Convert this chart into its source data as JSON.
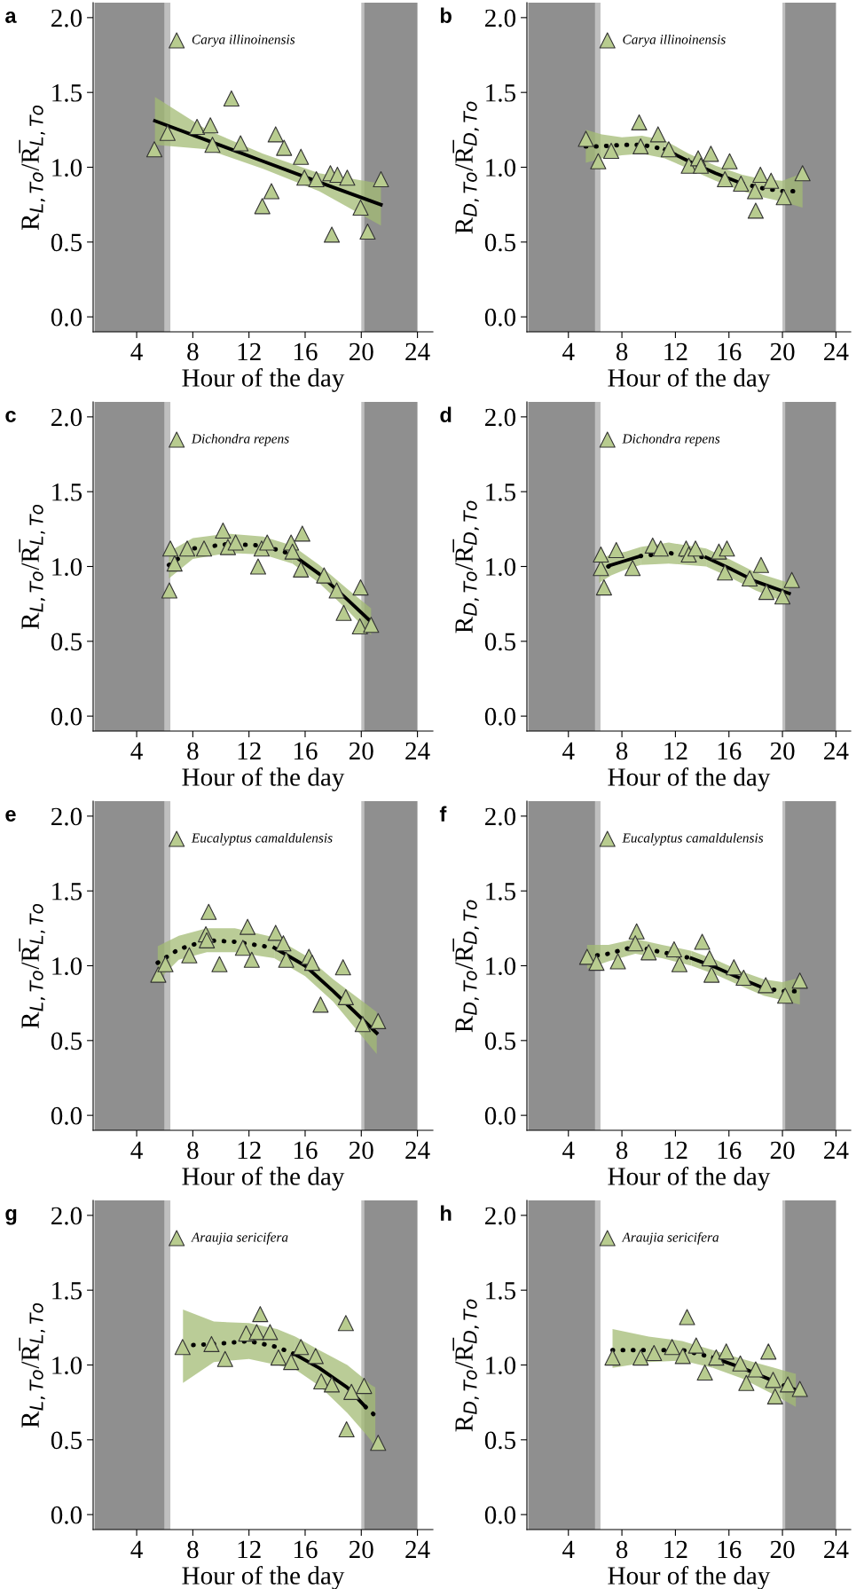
{
  "chart_data": [
    {
      "type": "scatter",
      "title": "a",
      "xlabel": "Hour of the day",
      "ylabel": "R$_{L,To}$/R̅$_{L,To}$",
      "xlim": [
        0.9,
        25.1
      ],
      "xticks": [
        4,
        8,
        12,
        16,
        20,
        24
      ],
      "ylim": [
        -0.1,
        2.1
      ],
      "yticks": [
        {
          "value": 0,
          "label": "0.0"
        },
        {
          "value": 0.5,
          "label": "0.5"
        },
        {
          "value": 1,
          "label": "1.0"
        },
        {
          "value": 1.5,
          "label": "1.5"
        },
        {
          "value": 2,
          "label": "2.0"
        }
      ],
      "legend": "top left",
      "bands": [
        {
          "axis": "x",
          "from": 1,
          "to": 6,
          "color": "#8f8f8f"
        },
        {
          "axis": "x",
          "from": 6,
          "to": 6.4,
          "color": "#bfbfbf"
        },
        {
          "axis": "x",
          "from": 20,
          "to": 20.2,
          "color": "#bfbfbf"
        },
        {
          "axis": "x",
          "from": 20.2,
          "to": 24,
          "color": "#8f8f8f"
        }
      ],
      "series": [
        {
          "type": "scatter",
          "marker": "triangle",
          "name": "Carya illinoinensis",
          "color": "#b8cc8f",
          "x": [
            5.26,
            6.2,
            8.3,
            9.25,
            9.4,
            10.75,
            11.4,
            12.95,
            13.6,
            13.9,
            14.5,
            15.7,
            15.95,
            16.8,
            17.8,
            17.9,
            18.3,
            19.0,
            19.95,
            20.45,
            21.4
          ],
          "values": [
            1.12,
            1.23,
            1.27,
            1.28,
            1.15,
            1.46,
            1.16,
            0.74,
            0.84,
            1.22,
            1.13,
            1.07,
            0.93,
            0.92,
            0.96,
            0.55,
            0.95,
            0.93,
            0.73,
            0.57,
            0.92
          ]
        },
        {
          "type": "line",
          "color": "#000000",
          "line_style": "solid",
          "x": [
            5.3,
            9,
            13,
            17,
            21.4
          ],
          "values": [
            1.31,
            1.18,
            1.04,
            0.9,
            0.75
          ],
          "lower": [
            1.15,
            1.12,
            0.99,
            0.84,
            0.61
          ],
          "upper": [
            1.47,
            1.25,
            1.09,
            0.96,
            0.89
          ]
        }
      ]
    },
    {
      "type": "scatter",
      "title": "b",
      "xlabel": "Hour of the day",
      "ylabel": "R$_{D,To}$/R̅$_{D,To}$",
      "xlim": [
        0.9,
        25.1
      ],
      "xticks": [
        4,
        8,
        12,
        16,
        20,
        24
      ],
      "ylim": [
        -0.1,
        2.1
      ],
      "yticks": [
        {
          "value": 0,
          "label": "0.0"
        },
        {
          "value": 0.5,
          "label": "0.5"
        },
        {
          "value": 1,
          "label": "1.0"
        },
        {
          "value": 1.5,
          "label": "1.5"
        },
        {
          "value": 2,
          "label": "2.0"
        }
      ],
      "legend": "top left",
      "bands": [
        {
          "axis": "x",
          "from": 1,
          "to": 6,
          "color": "#8f8f8f"
        },
        {
          "axis": "x",
          "from": 6,
          "to": 6.4,
          "color": "#bfbfbf"
        },
        {
          "axis": "x",
          "from": 20,
          "to": 20.2,
          "color": "#bfbfbf"
        },
        {
          "axis": "x",
          "from": 20.2,
          "to": 24,
          "color": "#8f8f8f"
        }
      ],
      "series": [
        {
          "type": "scatter",
          "marker": "triangle",
          "name": "Carya illinoinensis",
          "color": "#b8cc8f",
          "x": [
            5.31,
            6.23,
            7.2,
            9.29,
            9.4,
            10.7,
            11.5,
            13.0,
            13.7,
            13.9,
            14.65,
            15.7,
            16.05,
            16.9,
            17.95,
            18.0,
            18.35,
            19.15,
            20.1,
            21.5
          ],
          "values": [
            1.19,
            1.04,
            1.11,
            1.3,
            1.14,
            1.22,
            1.12,
            1.01,
            1.06,
            1.01,
            1.09,
            0.92,
            1.04,
            0.89,
            0.84,
            0.71,
            0.95,
            0.91,
            0.8,
            0.96
          ]
        },
        {
          "type": "line",
          "color": "#000000",
          "line_style": "dotted",
          "x": [
            5.3,
            6.5,
            8,
            9.5,
            11.2
          ],
          "values": [
            1.14,
            1.14,
            1.15,
            1.15,
            1.12
          ],
          "lower": [
            1.03,
            1.06,
            1.08,
            1.09,
            1.06
          ],
          "upper": [
            1.25,
            1.22,
            1.2,
            1.21,
            1.18
          ]
        },
        {
          "type": "line",
          "color": "#000000",
          "line_style": "solid",
          "x": [
            11.2,
            13,
            15,
            17
          ],
          "values": [
            1.12,
            1.04,
            0.96,
            0.89
          ],
          "lower": [
            1.06,
            0.99,
            0.91,
            0.84
          ],
          "upper": [
            1.18,
            1.09,
            1.01,
            0.95
          ]
        },
        {
          "type": "line",
          "color": "#000000",
          "line_style": "dotted",
          "x": [
            17,
            18.5,
            20,
            21.5
          ],
          "values": [
            0.89,
            0.86,
            0.84,
            0.84
          ],
          "lower": [
            0.84,
            0.8,
            0.77,
            0.73
          ],
          "upper": [
            0.95,
            0.92,
            0.91,
            0.96
          ]
        }
      ]
    },
    {
      "type": "scatter",
      "title": "c",
      "xlabel": "Hour of the day",
      "ylabel": "R$_{L,To}$/R̅$_{L,To}$",
      "xlim": [
        0.9,
        25.1
      ],
      "xticks": [
        4,
        8,
        12,
        16,
        20,
        24
      ],
      "ylim": [
        -0.1,
        2.1
      ],
      "yticks": [
        {
          "value": 0,
          "label": "0.0"
        },
        {
          "value": 0.5,
          "label": "0.5"
        },
        {
          "value": 1,
          "label": "1.0"
        },
        {
          "value": 1.5,
          "label": "1.5"
        },
        {
          "value": 2,
          "label": "2.0"
        }
      ],
      "legend": "top left",
      "bands": [
        {
          "axis": "x",
          "from": 1,
          "to": 6,
          "color": "#8f8f8f"
        },
        {
          "axis": "x",
          "from": 6,
          "to": 6.4,
          "color": "#bfbfbf"
        },
        {
          "axis": "x",
          "from": 20,
          "to": 20.2,
          "color": "#bfbfbf"
        },
        {
          "axis": "x",
          "from": 20.2,
          "to": 24,
          "color": "#8f8f8f"
        }
      ],
      "series": [
        {
          "type": "scatter",
          "marker": "triangle",
          "name": "Dichondra repens",
          "color": "#b8cc8f",
          "x": [
            6.4,
            6.33,
            6.7,
            7.6,
            8.8,
            10.15,
            10.5,
            11.05,
            12.65,
            12.9,
            13.3,
            15.0,
            15.1,
            15.7,
            15.8,
            17.35,
            18.25,
            18.75,
            19.95,
            19.9,
            20.7
          ],
          "values": [
            1.12,
            0.84,
            1.02,
            1.12,
            1.12,
            1.24,
            1.13,
            1.16,
            1.0,
            1.12,
            1.16,
            1.16,
            1.1,
            0.98,
            1.22,
            0.94,
            0.84,
            0.69,
            0.86,
            0.6,
            0.61
          ]
        },
        {
          "type": "line",
          "color": "#000000",
          "line_style": "dotted",
          "x": [
            6.3,
            8,
            10.5,
            13,
            15.1
          ],
          "values": [
            1.01,
            1.12,
            1.15,
            1.14,
            1.08
          ],
          "lower": [
            0.92,
            1.05,
            1.09,
            1.08,
            1.02
          ],
          "upper": [
            1.1,
            1.19,
            1.22,
            1.2,
            1.14
          ]
        },
        {
          "type": "line",
          "color": "#000000",
          "line_style": "solid",
          "x": [
            15.1,
            17,
            19,
            20.7
          ],
          "values": [
            1.08,
            0.95,
            0.78,
            0.63
          ],
          "lower": [
            1.02,
            0.89,
            0.71,
            0.54
          ],
          "upper": [
            1.14,
            1.01,
            0.85,
            0.72
          ]
        }
      ]
    },
    {
      "type": "scatter",
      "title": "d",
      "xlabel": "Hour of the day",
      "ylabel": "R$_{D,To}$/R̅$_{D,To}$",
      "xlim": [
        0.9,
        25.1
      ],
      "xticks": [
        4,
        8,
        12,
        16,
        20,
        24
      ],
      "ylim": [
        -0.1,
        2.1
      ],
      "yticks": [
        {
          "value": 0,
          "label": "0.0"
        },
        {
          "value": 0.5,
          "label": "0.5"
        },
        {
          "value": 1,
          "label": "1.0"
        },
        {
          "value": 1.5,
          "label": "1.5"
        },
        {
          "value": 2,
          "label": "2.0"
        }
      ],
      "legend": "top left",
      "bands": [
        {
          "axis": "x",
          "from": 1,
          "to": 6,
          "color": "#8f8f8f"
        },
        {
          "axis": "x",
          "from": 6,
          "to": 6.4,
          "color": "#bfbfbf"
        },
        {
          "axis": "x",
          "from": 20,
          "to": 20.2,
          "color": "#bfbfbf"
        },
        {
          "axis": "x",
          "from": 20.2,
          "to": 24,
          "color": "#8f8f8f"
        }
      ],
      "series": [
        {
          "type": "scatter",
          "marker": "triangle",
          "name": "Dichondra repens",
          "color": "#b8cc8f",
          "x": [
            6.43,
            6.43,
            6.66,
            7.58,
            8.8,
            10.3,
            10.9,
            12.8,
            13.0,
            13.5,
            15.25,
            15.7,
            15.85,
            17.55,
            18.4,
            18.8,
            20.0,
            20.7
          ],
          "values": [
            0.99,
            1.08,
            0.86,
            1.11,
            0.99,
            1.14,
            1.12,
            1.12,
            1.08,
            1.12,
            1.1,
            0.96,
            1.12,
            0.92,
            1.01,
            0.83,
            0.8,
            0.91
          ]
        },
        {
          "type": "line",
          "color": "#000000",
          "line_style": "dotted",
          "x": [
            6.3,
            7.2
          ],
          "values": [
            0.97,
            1.01
          ],
          "lower": [
            0.89,
            0.94
          ],
          "upper": [
            1.05,
            1.08
          ]
        },
        {
          "type": "line",
          "color": "#000000",
          "line_style": "solid",
          "x": [
            7.2,
            8.3,
            9.4
          ],
          "values": [
            1.01,
            1.04,
            1.07
          ],
          "lower": [
            0.94,
            0.98,
            1.01
          ],
          "upper": [
            1.08,
            1.1,
            1.13
          ]
        },
        {
          "type": "line",
          "color": "#000000",
          "line_style": "dotted",
          "x": [
            9.4,
            11.5,
            14.3
          ],
          "values": [
            1.07,
            1.09,
            1.06
          ],
          "lower": [
            1.01,
            1.02,
            1.0
          ],
          "upper": [
            1.13,
            1.16,
            1.12
          ]
        },
        {
          "type": "line",
          "color": "#000000",
          "line_style": "solid",
          "x": [
            14.3,
            16,
            18,
            20.5
          ],
          "values": [
            1.06,
            0.99,
            0.9,
            0.82
          ],
          "lower": [
            1.0,
            0.93,
            0.84,
            0.75
          ],
          "upper": [
            1.12,
            1.05,
            0.96,
            0.89
          ]
        }
      ]
    },
    {
      "type": "scatter",
      "title": "e",
      "xlabel": "Hour of the day",
      "ylabel": "R$_{L,To}$/R̅$_{L,To}$",
      "xlim": [
        0.9,
        25.1
      ],
      "xticks": [
        4,
        8,
        12,
        16,
        20,
        24
      ],
      "ylim": [
        -0.1,
        2.1
      ],
      "yticks": [
        {
          "value": 0,
          "label": "0.0"
        },
        {
          "value": 0.5,
          "label": "0.5"
        },
        {
          "value": 1,
          "label": "1.0"
        },
        {
          "value": 1.5,
          "label": "1.5"
        },
        {
          "value": 2,
          "label": "2.0"
        }
      ],
      "legend": "top left",
      "bands": [
        {
          "axis": "x",
          "from": 1,
          "to": 6,
          "color": "#8f8f8f"
        },
        {
          "axis": "x",
          "from": 6,
          "to": 6.4,
          "color": "#bfbfbf"
        },
        {
          "axis": "x",
          "from": 20,
          "to": 20.2,
          "color": "#bfbfbf"
        },
        {
          "axis": "x",
          "from": 20.2,
          "to": 24,
          "color": "#8f8f8f"
        }
      ],
      "series": [
        {
          "type": "scatter",
          "marker": "triangle",
          "name": "Eucalyptus camaldulensis",
          "color": "#b8cc8f",
          "x": [
            5.54,
            6.05,
            7.75,
            8.93,
            9.13,
            9.0,
            9.9,
            11.57,
            11.9,
            12.2,
            13.9,
            14.45,
            14.65,
            16.27,
            16.5,
            17.1,
            18.7,
            18.9,
            20.1,
            21.2
          ],
          "values": [
            0.94,
            1.01,
            1.07,
            1.21,
            1.36,
            1.17,
            1.01,
            1.12,
            1.26,
            1.04,
            1.22,
            1.15,
            1.04,
            1.06,
            1.02,
            0.74,
            0.99,
            0.79,
            0.61,
            0.63
          ]
        },
        {
          "type": "line",
          "color": "#000000",
          "line_style": "dotted",
          "x": [
            5.5,
            7,
            9,
            11,
            13.8
          ],
          "values": [
            1.02,
            1.11,
            1.17,
            1.16,
            1.12
          ],
          "lower": [
            0.9,
            1.04,
            1.09,
            1.09,
            1.05
          ],
          "upper": [
            1.13,
            1.2,
            1.25,
            1.25,
            1.19
          ]
        },
        {
          "type": "line",
          "color": "#000000",
          "line_style": "solid",
          "x": [
            13.8,
            16,
            18,
            21.1
          ],
          "values": [
            1.12,
            1.0,
            0.83,
            0.55
          ],
          "lower": [
            1.05,
            0.93,
            0.76,
            0.41
          ],
          "upper": [
            1.19,
            1.07,
            0.91,
            0.69
          ]
        }
      ]
    },
    {
      "type": "scatter",
      "title": "f",
      "xlabel": "Hour of the day",
      "ylabel": "R$_{D,To}$/R̅$_{D,To}$",
      "xlim": [
        0.9,
        25.1
      ],
      "xticks": [
        4,
        8,
        12,
        16,
        20,
        24
      ],
      "ylim": [
        -0.1,
        2.1
      ],
      "yticks": [
        {
          "value": 0,
          "label": "0.0"
        },
        {
          "value": 0.5,
          "label": "0.5"
        },
        {
          "value": 1,
          "label": "1.0"
        },
        {
          "value": 1.5,
          "label": "1.5"
        },
        {
          "value": 2,
          "label": "2.0"
        }
      ],
      "legend": "top left",
      "bands": [
        {
          "axis": "x",
          "from": 1,
          "to": 6,
          "color": "#8f8f8f"
        },
        {
          "axis": "x",
          "from": 6,
          "to": 6.4,
          "color": "#bfbfbf"
        },
        {
          "axis": "x",
          "from": 20,
          "to": 20.2,
          "color": "#bfbfbf"
        },
        {
          "axis": "x",
          "from": 20.2,
          "to": 24,
          "color": "#8f8f8f"
        }
      ],
      "series": [
        {
          "type": "scatter",
          "marker": "triangle",
          "name": "Eucalyptus camaldulensis",
          "color": "#b8cc8f",
          "x": [
            5.4,
            6.1,
            7.7,
            9.1,
            9.0,
            10.0,
            11.9,
            12.3,
            14.0,
            14.55,
            14.7,
            16.37,
            17.1,
            18.75,
            20.2,
            21.3
          ],
          "values": [
            1.06,
            1.02,
            1.03,
            1.23,
            1.15,
            1.09,
            1.11,
            1.01,
            1.16,
            1.05,
            0.94,
            0.99,
            0.92,
            0.87,
            0.8,
            0.9
          ]
        },
        {
          "type": "line",
          "color": "#000000",
          "line_style": "dotted",
          "x": [
            5.4,
            7,
            9,
            11,
            13.2
          ],
          "values": [
            1.06,
            1.08,
            1.13,
            1.09,
            1.05
          ],
          "lower": [
            0.98,
            1.03,
            1.08,
            1.05,
            1.0
          ],
          "upper": [
            1.14,
            1.14,
            1.18,
            1.14,
            1.1
          ]
        },
        {
          "type": "line",
          "color": "#000000",
          "line_style": "solid",
          "x": [
            13.2,
            15,
            17,
            18.6
          ],
          "values": [
            1.05,
            0.99,
            0.91,
            0.85
          ],
          "lower": [
            1.0,
            0.94,
            0.86,
            0.8
          ],
          "upper": [
            1.1,
            1.04,
            0.96,
            0.91
          ]
        },
        {
          "type": "line",
          "color": "#000000",
          "line_style": "dotted",
          "x": [
            18.6,
            20,
            21.3
          ],
          "values": [
            0.85,
            0.83,
            0.83
          ],
          "lower": [
            0.8,
            0.77,
            0.74
          ],
          "upper": [
            0.91,
            0.89,
            0.92
          ]
        }
      ]
    },
    {
      "type": "scatter",
      "title": "g",
      "xlabel": "Hour of the day",
      "ylabel": "R$_{L,To}$/R̅$_{L,To}$",
      "xlim": [
        0.9,
        25.1
      ],
      "xticks": [
        4,
        8,
        12,
        16,
        20,
        24
      ],
      "ylim": [
        -0.1,
        2.1
      ],
      "yticks": [
        {
          "value": 0,
          "label": "0.0"
        },
        {
          "value": 0.5,
          "label": "0.5"
        },
        {
          "value": 1,
          "label": "1.0"
        },
        {
          "value": 1.5,
          "label": "1.5"
        },
        {
          "value": 2,
          "label": "2.0"
        }
      ],
      "legend": "top left",
      "bands": [
        {
          "axis": "x",
          "from": 1,
          "to": 6,
          "color": "#8f8f8f"
        },
        {
          "axis": "x",
          "from": 6,
          "to": 6.4,
          "color": "#bfbfbf"
        },
        {
          "axis": "x",
          "from": 20,
          "to": 20.2,
          "color": "#bfbfbf"
        },
        {
          "axis": "x",
          "from": 20.2,
          "to": 24,
          "color": "#8f8f8f"
        }
      ],
      "series": [
        {
          "type": "scatter",
          "marker": "triangle",
          "name": "Araujia sericifera",
          "color": "#b8cc8f",
          "x": [
            7.27,
            9.33,
            10.3,
            11.8,
            12.55,
            12.8,
            13.5,
            14.1,
            15.0,
            15.7,
            16.75,
            17.15,
            17.9,
            18.9,
            18.95,
            19.3,
            20.2,
            21.2
          ],
          "values": [
            1.12,
            1.14,
            1.04,
            1.21,
            1.22,
            1.34,
            1.22,
            1.05,
            1.02,
            1.12,
            1.06,
            0.89,
            0.87,
            1.28,
            0.57,
            0.82,
            0.86,
            0.48
          ]
        },
        {
          "type": "line",
          "color": "#000000",
          "line_style": "dotted",
          "x": [
            7.3,
            9.5,
            12,
            14,
            15.3
          ],
          "values": [
            1.13,
            1.14,
            1.16,
            1.12,
            1.07
          ],
          "lower": [
            0.88,
            1.02,
            1.04,
            1.0,
            0.97
          ],
          "upper": [
            1.37,
            1.29,
            1.28,
            1.24,
            1.19
          ]
        },
        {
          "type": "line",
          "color": "#000000",
          "line_style": "solid",
          "x": [
            15.3,
            17,
            19,
            20.3
          ],
          "values": [
            1.07,
            0.98,
            0.85,
            0.72
          ],
          "lower": [
            0.97,
            0.86,
            0.68,
            0.54
          ],
          "upper": [
            1.19,
            1.1,
            1.0,
            0.9
          ]
        },
        {
          "type": "line",
          "color": "#000000",
          "line_style": "dotted",
          "x": [
            20.3,
            20.65,
            21
          ],
          "values": [
            0.72,
            0.69,
            0.66
          ],
          "lower": [
            0.54,
            0.5,
            0.45
          ],
          "upper": [
            0.9,
            0.87,
            0.85
          ]
        }
      ]
    },
    {
      "type": "scatter",
      "title": "h",
      "xlabel": "Hour of the day",
      "ylabel": "R$_{D,To}$/R̅$_{D,To}$",
      "xlim": [
        0.9,
        25.1
      ],
      "xticks": [
        4,
        8,
        12,
        16,
        20,
        24
      ],
      "ylim": [
        -0.1,
        2.1
      ],
      "yticks": [
        {
          "value": 0,
          "label": "0.0"
        },
        {
          "value": 0.5,
          "label": "0.5"
        },
        {
          "value": 1,
          "label": "1.0"
        },
        {
          "value": 1.5,
          "label": "1.5"
        },
        {
          "value": 2,
          "label": "2.0"
        }
      ],
      "legend": "top left",
      "bands": [
        {
          "axis": "x",
          "from": 1,
          "to": 6,
          "color": "#8f8f8f"
        },
        {
          "axis": "x",
          "from": 6,
          "to": 6.4,
          "color": "#bfbfbf"
        },
        {
          "axis": "x",
          "from": 20,
          "to": 20.2,
          "color": "#bfbfbf"
        },
        {
          "axis": "x",
          "from": 20.2,
          "to": 24,
          "color": "#8f8f8f"
        }
      ],
      "series": [
        {
          "type": "scatter",
          "marker": "triangle",
          "name": "Araujia sericifera",
          "color": "#b8cc8f",
          "x": [
            7.3,
            9.4,
            10.4,
            11.75,
            12.55,
            12.87,
            13.55,
            14.2,
            15.05,
            15.8,
            16.85,
            17.3,
            18.0,
            18.95,
            19.3,
            19.45,
            20.4,
            21.3
          ],
          "values": [
            1.05,
            1.05,
            1.08,
            1.12,
            1.06,
            1.32,
            1.13,
            0.95,
            1.05,
            1.09,
            1.01,
            0.88,
            0.97,
            1.09,
            0.9,
            0.79,
            0.87,
            0.84
          ]
        },
        {
          "type": "line",
          "color": "#000000",
          "line_style": "dotted",
          "x": [
            7.3,
            10,
            12.5,
            14.8
          ],
          "values": [
            1.1,
            1.1,
            1.1,
            1.05
          ],
          "lower": [
            0.98,
            1.02,
            1.03,
            0.98
          ],
          "upper": [
            1.24,
            1.19,
            1.16,
            1.1
          ]
        },
        {
          "type": "line",
          "color": "#000000",
          "line_style": "solid",
          "x": [
            14.8,
            17,
            19.4
          ],
          "values": [
            1.05,
            0.98,
            0.89
          ],
          "lower": [
            0.98,
            0.91,
            0.8
          ],
          "upper": [
            1.1,
            1.04,
            0.98
          ]
        },
        {
          "type": "line",
          "color": "#000000",
          "line_style": "dotted",
          "x": [
            19.4,
            20.2,
            21
          ],
          "values": [
            0.89,
            0.86,
            0.83
          ],
          "lower": [
            0.8,
            0.76,
            0.72
          ],
          "upper": [
            0.98,
            0.96,
            0.94
          ]
        }
      ]
    }
  ]
}
